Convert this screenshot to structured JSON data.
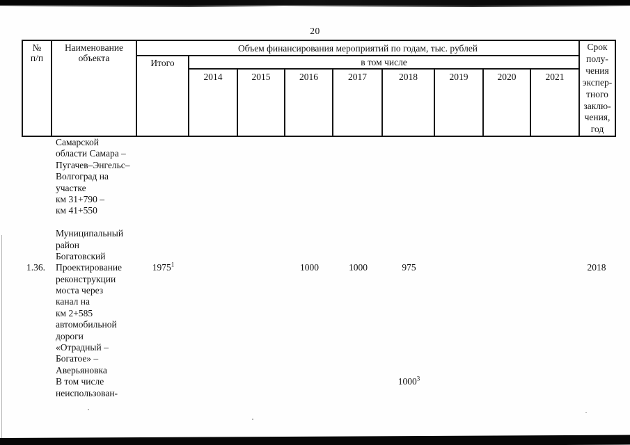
{
  "page": {
    "number": "20"
  },
  "colors": {
    "ink": "#121212",
    "border": "#161616",
    "paper": "#fefefe",
    "scan_edge": "#070707"
  },
  "table": {
    "header": {
      "num": "№\nп/п",
      "name": "Наименование\nобъекта",
      "group": "Объем финансирования мероприятий по годам, тыс. рублей",
      "itogo": "Итого",
      "subgroup": "в том числе",
      "years": [
        "2014",
        "2015",
        "2016",
        "2017",
        "2018",
        "2019",
        "2020",
        "2021"
      ],
      "srok": "Срок\nполу-\nчения\nэкспер-\nтного\nзаклю-\nчения,\nгод"
    },
    "rows": [
      {
        "name": "Самарской"
      },
      {
        "name": "области Самара –"
      },
      {
        "name": "Пугачев–Энгельс–"
      },
      {
        "name": "Волгоград на"
      },
      {
        "name": "участке"
      },
      {
        "name": "км 31+790 –"
      },
      {
        "name": "км 41+550"
      },
      {},
      {
        "name": "Муниципальный"
      },
      {
        "name": "район"
      },
      {
        "name": "Богатовский"
      },
      {
        "num": "1.36.",
        "name": "Проектирование",
        "itogo": "1975^1",
        "y2016": "1000",
        "y2017": "1000",
        "y2018": "975",
        "srok": "2018"
      },
      {
        "name": "реконструкции"
      },
      {
        "name": "моста через"
      },
      {
        "name": "канал на"
      },
      {
        "name": "км 2+585"
      },
      {
        "name": "автомобильной"
      },
      {
        "name": "дороги"
      },
      {
        "name": "«Отрадный –"
      },
      {
        "name": "Богатое» –"
      },
      {
        "name": "Аверьяновка"
      },
      {
        "name": "В том числе",
        "y2018": "1000^3"
      },
      {
        "name": "неиспользован-"
      }
    ]
  }
}
